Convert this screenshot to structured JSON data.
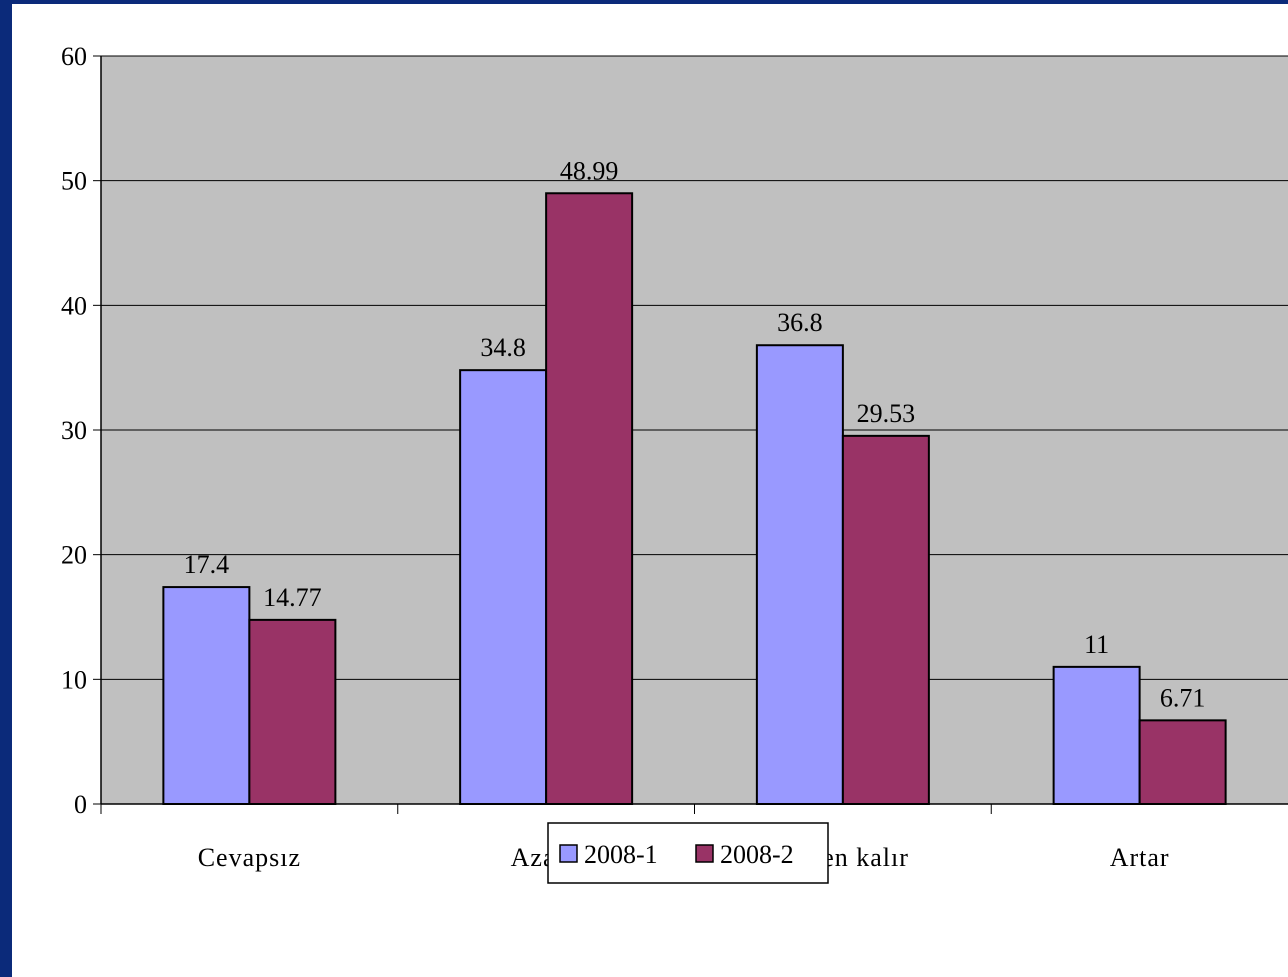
{
  "chart_data": {
    "type": "bar",
    "categories": [
      "Cevapsız",
      "Azalır",
      "Aynen kalır",
      "Artar"
    ],
    "series": [
      {
        "name": "2008-1",
        "values": [
          17.4,
          34.8,
          36.8,
          11
        ],
        "color": "#9999ff"
      },
      {
        "name": "2008-2",
        "values": [
          14.77,
          48.99,
          29.53,
          6.71
        ],
        "color": "#993366"
      }
    ],
    "data_labels": [
      [
        "17.4",
        "34.8",
        "36.8",
        "11"
      ],
      [
        "14.77",
        "48.99",
        "29.53",
        "6.71"
      ]
    ],
    "y_ticks": [
      "0",
      "10",
      "20",
      "30",
      "40",
      "50",
      "60"
    ],
    "ylim": [
      0,
      60
    ],
    "grid": true,
    "legend": "bottom-center",
    "plot_background": "#c0c0c0",
    "frame_color": "#0b2a7a"
  }
}
